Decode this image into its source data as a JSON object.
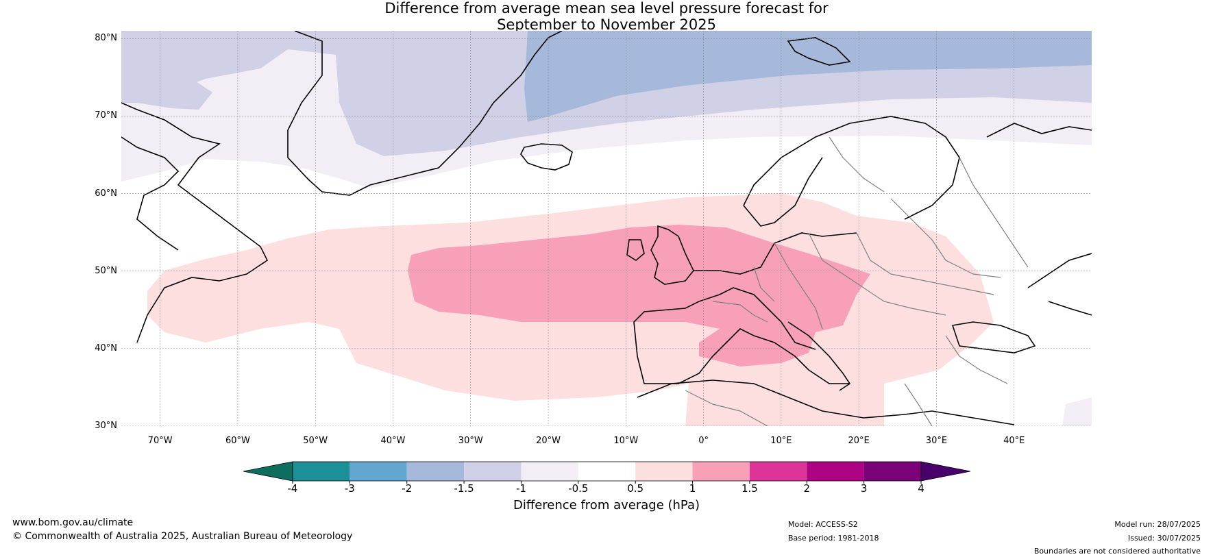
{
  "title": {
    "line1": "Difference from average mean sea level pressure forecast for",
    "line2": "September to November 2025"
  },
  "map": {
    "lat_range": [
      30,
      81
    ],
    "lon_range": [
      -75,
      50
    ],
    "lat_ticks": [
      {
        "value": 80,
        "label": "80°N"
      },
      {
        "value": 70,
        "label": "70°N"
      },
      {
        "value": 60,
        "label": "60°N"
      },
      {
        "value": 50,
        "label": "50°N"
      },
      {
        "value": 40,
        "label": "40°N"
      },
      {
        "value": 30,
        "label": "30°N"
      }
    ],
    "lon_ticks": [
      {
        "value": -70,
        "label": "70°W"
      },
      {
        "value": -60,
        "label": "60°W"
      },
      {
        "value": -50,
        "label": "50°W"
      },
      {
        "value": -40,
        "label": "40°W"
      },
      {
        "value": -30,
        "label": "30°W"
      },
      {
        "value": -20,
        "label": "20°W"
      },
      {
        "value": -10,
        "label": "10°W"
      },
      {
        "value": 0,
        "label": "0°"
      },
      {
        "value": 10,
        "label": "10°E"
      },
      {
        "value": 20,
        "label": "20°E"
      },
      {
        "value": 30,
        "label": "30°E"
      },
      {
        "value": 40,
        "label": "40°E"
      }
    ],
    "gridlines": true
  },
  "colorbar": {
    "title": "Difference from average (hPa)",
    "tick_labels": [
      "-4",
      "-3",
      "-2",
      "-1.5",
      "-1",
      "-0.5",
      "0.5",
      "1",
      "1.5",
      "2",
      "3",
      "4"
    ],
    "colors": {
      "below_min": "#0b6e5f",
      "c1": "#1b9098",
      "c2": "#63a6d0",
      "c3": "#a6b9db",
      "c4": "#d0d0e6",
      "c5": "#f3eef6",
      "c6": "#ffffff",
      "c7": "#fddfe0",
      "c8": "#f8a0b8",
      "c9": "#dd3597",
      "c10": "#ac0482",
      "c11": "#7a0177",
      "above_max": "#49006a"
    }
  },
  "footer": {
    "url": "www.bom.gov.au/climate",
    "copyright": "© Commonwealth of Australia 2025, Australian Bureau of Meteorology",
    "model": "Model: ACCESS-S2",
    "base_period": "Base period: 1981-2018",
    "model_run": "Model run: 28/07/2025",
    "issued": "Issued: 30/07/2025",
    "disclaimer": "Boundaries are not considered authoritative"
  }
}
